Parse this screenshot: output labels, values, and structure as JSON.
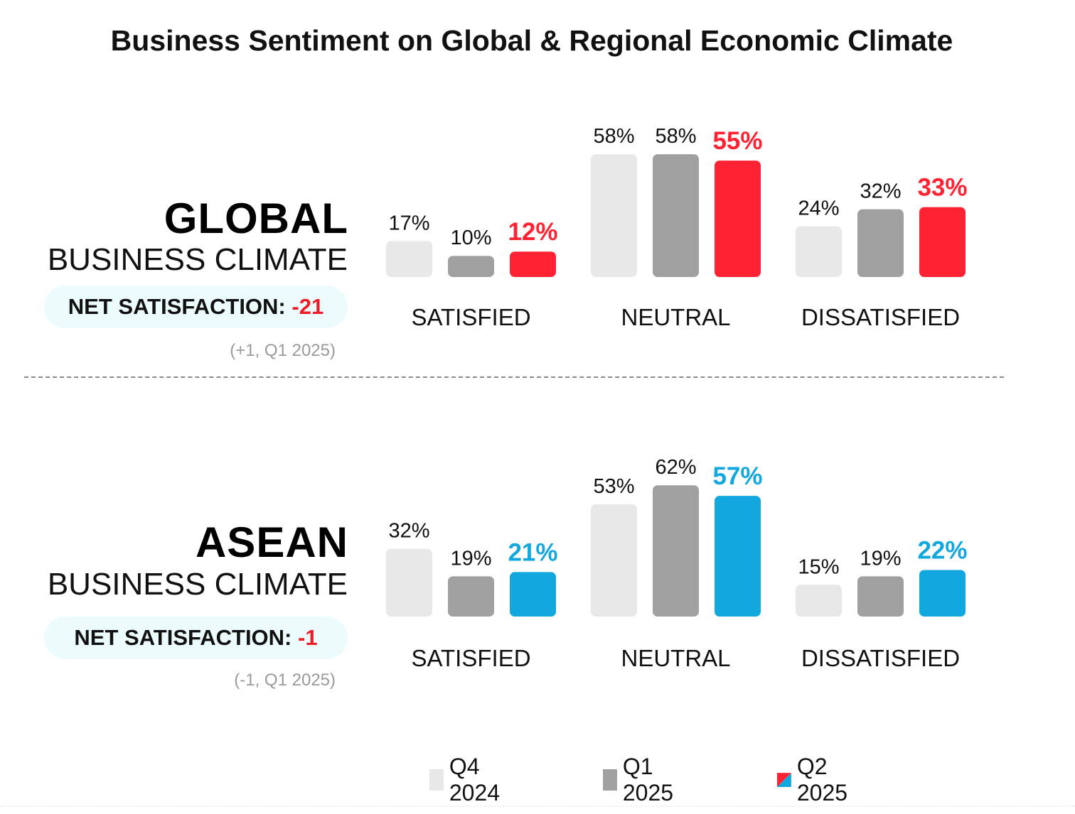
{
  "title": "Business Sentiment on Global & Regional Economic Climate",
  "colors": {
    "q4": "#e8e8e8",
    "q1": "#a0a0a0",
    "global_accent": "#ff2233",
    "asean_accent": "#13a7df",
    "label_dark": "#111111"
  },
  "global": {
    "name": "GLOBAL",
    "sub": "BUSINESS CLIMATE",
    "net_label": "NET SATISFACTION:",
    "net_value": "-21",
    "change_note": "(+1, Q1 2025)"
  },
  "asean": {
    "name": "ASEAN",
    "sub": "BUSINESS CLIMATE",
    "net_label": "NET SATISFACTION:",
    "net_value": "-1",
    "change_note": "(-1, Q1 2025)"
  },
  "legend": [
    {
      "label": "Q4 2024",
      "icon": "light-gray-square"
    },
    {
      "label": "Q1 2025",
      "icon": "gray-square"
    },
    {
      "label": "Q2 2025",
      "icon": "split-blue-red-square"
    }
  ],
  "chart_data": [
    {
      "type": "bar",
      "panel": "global",
      "categories": [
        "SATISFIED",
        "NEUTRAL",
        "DISSATISFIED"
      ],
      "series": [
        {
          "name": "Q4 2024",
          "values": [
            17,
            58,
            24
          ]
        },
        {
          "name": "Q1 2025",
          "values": [
            10,
            58,
            32
          ]
        },
        {
          "name": "Q2 2025",
          "values": [
            12,
            55,
            33
          ]
        }
      ],
      "value_labels": [
        [
          "17%",
          "58%",
          "24%"
        ],
        [
          "10%",
          "58%",
          "32%"
        ],
        [
          "12%",
          "55%",
          "33%"
        ]
      ],
      "unit": "%",
      "legend_position": "bottom"
    },
    {
      "type": "bar",
      "panel": "asean",
      "categories": [
        "SATISFIED",
        "NEUTRAL",
        "DISSATISFIED"
      ],
      "series": [
        {
          "name": "Q4 2024",
          "values": [
            32,
            53,
            15
          ]
        },
        {
          "name": "Q1 2025",
          "values": [
            19,
            62,
            19
          ]
        },
        {
          "name": "Q2 2025",
          "values": [
            21,
            57,
            22
          ]
        }
      ],
      "value_labels": [
        [
          "32%",
          "53%",
          "15%"
        ],
        [
          "19%",
          "62%",
          "19%"
        ],
        [
          "21%",
          "57%",
          "22%"
        ]
      ],
      "unit": "%",
      "legend_position": "bottom"
    }
  ]
}
